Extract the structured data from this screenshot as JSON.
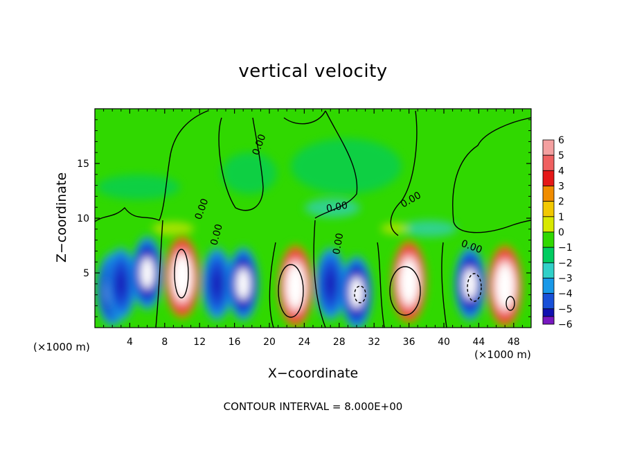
{
  "chart_data": {
    "type": "heatmap",
    "title": "vertical velocity",
    "xlabel": "X−coordinate",
    "ylabel": "Z−coordinate",
    "x_unit_label": "(×1000 m)",
    "y_unit_label": "(×1000 m)",
    "footer": "CONTOUR INTERVAL = 8.000E+00",
    "xlim": [
      0,
      50
    ],
    "ylim": [
      0,
      20
    ],
    "x_ticks": [
      4,
      8,
      12,
      16,
      20,
      24,
      28,
      32,
      36,
      40,
      44,
      48
    ],
    "x_tick_labels": [
      "4",
      "8",
      "12",
      "16",
      "20",
      "24",
      "28",
      "32",
      "36",
      "40",
      "44",
      "48"
    ],
    "y_ticks": [
      5,
      10,
      15
    ],
    "y_tick_labels": [
      "5",
      "10",
      "15"
    ],
    "contour_labels": [
      "0.00",
      "0.00",
      "0.00",
      "0.00",
      "0.00",
      "0.00",
      "0.00"
    ],
    "colorbar": {
      "levels": [
        6,
        5,
        4,
        3,
        2,
        1,
        0,
        -1,
        -2,
        -3,
        -4,
        -5,
        -6
      ],
      "labels": [
        "6",
        "5",
        "4",
        "3",
        "2",
        "1",
        "0",
        "−1",
        "−2",
        "−3",
        "−4",
        "−5",
        "−6"
      ],
      "colors": [
        "#f4a0a0",
        "#ef6060",
        "#e41818",
        "#f08c00",
        "#f2c800",
        "#d8e800",
        "#30d800",
        "#00cc60",
        "#30d0c8",
        "#1898e8",
        "#1850d8",
        "#1010b0",
        "#7818c0"
      ]
    },
    "cells": [
      {
        "x": 2.0,
        "z": 3.5,
        "w": -4.5
      },
      {
        "x": 3.0,
        "z": 4.0,
        "w": -3.0
      },
      {
        "x": 6.0,
        "z": 5.0,
        "w": -5.5
      },
      {
        "x": 10.0,
        "z": 4.6,
        "w": 6.0
      },
      {
        "x": 14.0,
        "z": 4.0,
        "w": -3.5
      },
      {
        "x": 17.0,
        "z": 4.0,
        "w": -4.5
      },
      {
        "x": 23.0,
        "z": 3.8,
        "w": 6.5
      },
      {
        "x": 27.0,
        "z": 4.0,
        "w": -3.5
      },
      {
        "x": 30.0,
        "z": 3.2,
        "w": -5.0
      },
      {
        "x": 36.0,
        "z": 4.2,
        "w": 6.0
      },
      {
        "x": 43.0,
        "z": 4.0,
        "w": -5.0
      },
      {
        "x": 47.0,
        "z": 3.8,
        "w": 5.5
      }
    ]
  }
}
